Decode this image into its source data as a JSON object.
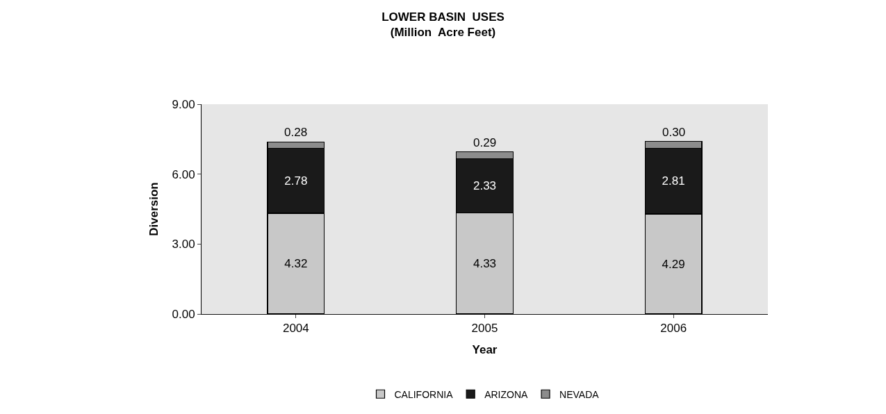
{
  "chart_data": {
    "type": "bar",
    "title": "LOWER BASIN  USES",
    "subtitle": "(Million  Acre Feet)",
    "xlabel": "Year",
    "ylabel": "Diversion",
    "categories": [
      "2004",
      "2005",
      "2006"
    ],
    "series": [
      {
        "name": "CALIFORNIA",
        "color": "#c8c8c8",
        "values": [
          4.32,
          4.33,
          4.29
        ],
        "value_labels": [
          "4.32",
          "4.33",
          "4.29"
        ]
      },
      {
        "name": "ARIZONA",
        "color": "#1a1a1a",
        "values": [
          2.78,
          2.33,
          2.81
        ],
        "value_labels": [
          "2.78",
          "2.33",
          "2.81"
        ]
      },
      {
        "name": "NEVADA",
        "color": "#8c8c8c",
        "values": [
          0.28,
          0.29,
          0.3
        ],
        "value_labels": [
          "0.28",
          "0.29",
          "0.30"
        ]
      }
    ],
    "stacked": true,
    "ylim": [
      0,
      9
    ],
    "yticks": [
      {
        "value": 0,
        "label": "0.00"
      },
      {
        "value": 3,
        "label": "3.00"
      },
      {
        "value": 6,
        "label": "6.00"
      },
      {
        "value": 9,
        "label": "9.00"
      }
    ],
    "grid": false,
    "legend": "bottom"
  }
}
